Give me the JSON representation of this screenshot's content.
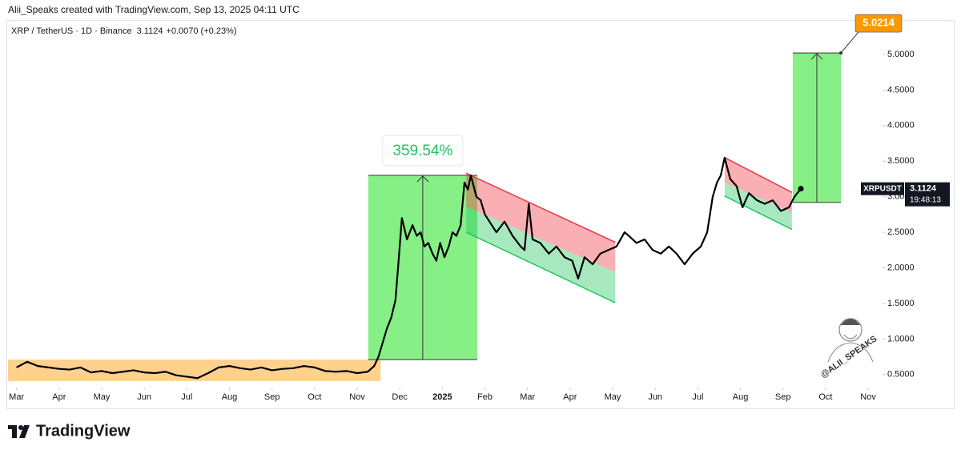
{
  "header": {
    "title": "Alii_Speaks created with TradingView.com, Sep 13, 2025 04:11 UTC"
  },
  "chart_data": {
    "type": "line",
    "symbol": "XRP / TetherUS · 1D · Binance",
    "last_price": 3.1124,
    "change": "+0.0070 (+0.23%)",
    "countdown": "19:48:13",
    "xlim": [
      -0.2,
      20.3
    ],
    "xticks": [
      {
        "value": 0,
        "label": "Mar"
      },
      {
        "value": 1,
        "label": "Apr"
      },
      {
        "value": 2,
        "label": "May"
      },
      {
        "value": 3,
        "label": "Jun"
      },
      {
        "value": 4,
        "label": "Jul"
      },
      {
        "value": 5,
        "label": "Aug"
      },
      {
        "value": 6,
        "label": "Sep"
      },
      {
        "value": 7,
        "label": "Oct"
      },
      {
        "value": 8,
        "label": "Nov"
      },
      {
        "value": 9,
        "label": "Dec"
      },
      {
        "value": 10,
        "label": "2025"
      },
      {
        "value": 11,
        "label": "Feb"
      },
      {
        "value": 12,
        "label": "Mar"
      },
      {
        "value": 13,
        "label": "Apr"
      },
      {
        "value": 14,
        "label": "May"
      },
      {
        "value": 15,
        "label": "Jun"
      },
      {
        "value": 16,
        "label": "Jul"
      },
      {
        "value": 17,
        "label": "Aug"
      },
      {
        "value": 18,
        "label": "Sep"
      },
      {
        "value": 19,
        "label": "Oct"
      },
      {
        "value": 20,
        "label": "Nov"
      }
    ],
    "ylim": [
      0.34,
      5.45
    ],
    "yticks": [
      {
        "value": 0.5,
        "label": "0.5000"
      },
      {
        "value": 1,
        "label": "1.0000"
      },
      {
        "value": 1.5,
        "label": "1.5000"
      },
      {
        "value": 2,
        "label": "2.0000"
      },
      {
        "value": 2.5,
        "label": "2.5000"
      },
      {
        "value": 3,
        "label": "3.0000"
      },
      {
        "value": 3.5,
        "label": "3.5000"
      },
      {
        "value": 4,
        "label": "4.0000"
      },
      {
        "value": 4.5,
        "label": "4.5000"
      },
      {
        "value": 5,
        "label": "5.0000"
      }
    ],
    "series": [
      {
        "name": "XRPUSDT",
        "color": "#000000",
        "x": [
          0,
          0.25,
          0.5,
          0.75,
          1,
          1.25,
          1.5,
          1.75,
          2,
          2.25,
          2.5,
          2.75,
          3,
          3.25,
          3.5,
          3.75,
          4,
          4.25,
          4.5,
          4.75,
          5,
          5.25,
          5.5,
          5.75,
          6,
          6.25,
          6.5,
          6.75,
          7,
          7.25,
          7.5,
          7.75,
          8,
          8.25,
          8.4,
          8.5,
          8.6,
          8.7,
          8.8,
          8.9,
          8.96,
          9.05,
          9.17,
          9.3,
          9.4,
          9.49,
          9.58,
          9.67,
          9.77,
          9.86,
          9.95,
          10.05,
          10.15,
          10.24,
          10.33,
          10.43,
          10.52,
          10.6,
          10.67,
          10.8,
          10.9,
          11,
          11.27,
          11.46,
          11.65,
          11.84,
          11.93,
          12.03,
          12.12,
          12.3,
          12.5,
          12.68,
          12.87,
          13.05,
          13.19,
          13.34,
          13.53,
          13.71,
          13.9,
          14.09,
          14.28,
          14.38,
          14.56,
          14.75,
          14.94,
          15.13,
          15.32,
          15.5,
          15.69,
          15.88,
          16.07,
          16.22,
          16.35,
          16.45,
          16.54,
          16.63,
          16.76,
          16.91,
          17.05,
          17.2,
          17.39,
          17.57,
          17.76,
          17.95,
          18.14,
          18.27,
          18.42
        ],
        "values": [
          0.6,
          0.68,
          0.62,
          0.6,
          0.58,
          0.57,
          0.6,
          0.53,
          0.55,
          0.52,
          0.54,
          0.56,
          0.53,
          0.52,
          0.54,
          0.49,
          0.47,
          0.45,
          0.52,
          0.6,
          0.62,
          0.59,
          0.57,
          0.6,
          0.56,
          0.58,
          0.59,
          0.62,
          0.6,
          0.55,
          0.54,
          0.55,
          0.52,
          0.54,
          0.62,
          0.75,
          0.95,
          1.15,
          1.3,
          1.55,
          2.0,
          2.7,
          2.4,
          2.6,
          2.45,
          2.5,
          2.3,
          2.35,
          2.2,
          2.1,
          2.35,
          2.15,
          2.3,
          2.5,
          2.45,
          2.6,
          3.2,
          3.1,
          3.3,
          3.0,
          2.95,
          2.75,
          2.5,
          2.65,
          2.45,
          2.3,
          2.25,
          2.9,
          2.4,
          2.35,
          2.2,
          2.3,
          2.15,
          2.1,
          1.85,
          2.15,
          2.05,
          2.2,
          2.25,
          2.3,
          2.5,
          2.45,
          2.35,
          2.4,
          2.25,
          2.2,
          2.3,
          2.2,
          2.05,
          2.2,
          2.3,
          2.5,
          3.0,
          3.2,
          3.3,
          3.55,
          3.25,
          3.15,
          2.85,
          3.05,
          2.95,
          2.9,
          2.95,
          2.8,
          2.85,
          3.0,
          3.1124
        ]
      }
    ],
    "range_box": {
      "x": [
        -0.2,
        8.55
      ],
      "y": [
        0.41,
        0.71
      ],
      "color": "#ffcc80"
    },
    "measure_boxes": [
      {
        "x": [
          8.26,
          10.82
        ],
        "y": [
          0.71,
          3.3
        ],
        "label": "359.54%",
        "color": "#86ef86",
        "label_color": "#22c55e"
      },
      {
        "x": [
          18.23,
          19.36
        ],
        "y": [
          2.92,
          5.0214
        ],
        "color": "#86ef86",
        "label_fill": "#ff9800"
      }
    ],
    "channels": [
      {
        "x": [
          10.56,
          14.06
        ],
        "upper": [
          3.33,
          2.36
        ],
        "middle": [
          2.86,
          1.94
        ],
        "lower": [
          2.5,
          1.51
        ]
      },
      {
        "x": [
          16.63,
          18.21
        ],
        "upper": [
          3.55,
          3.06
        ],
        "middle": [
          3.2,
          2.78
        ],
        "lower": [
          3.01,
          2.54
        ]
      }
    ],
    "upper_color": "#f23645",
    "lower_color": "#22c55e",
    "watermark": "@ALII_SPEAKS"
  },
  "footer": {
    "logo": "TradingView"
  }
}
